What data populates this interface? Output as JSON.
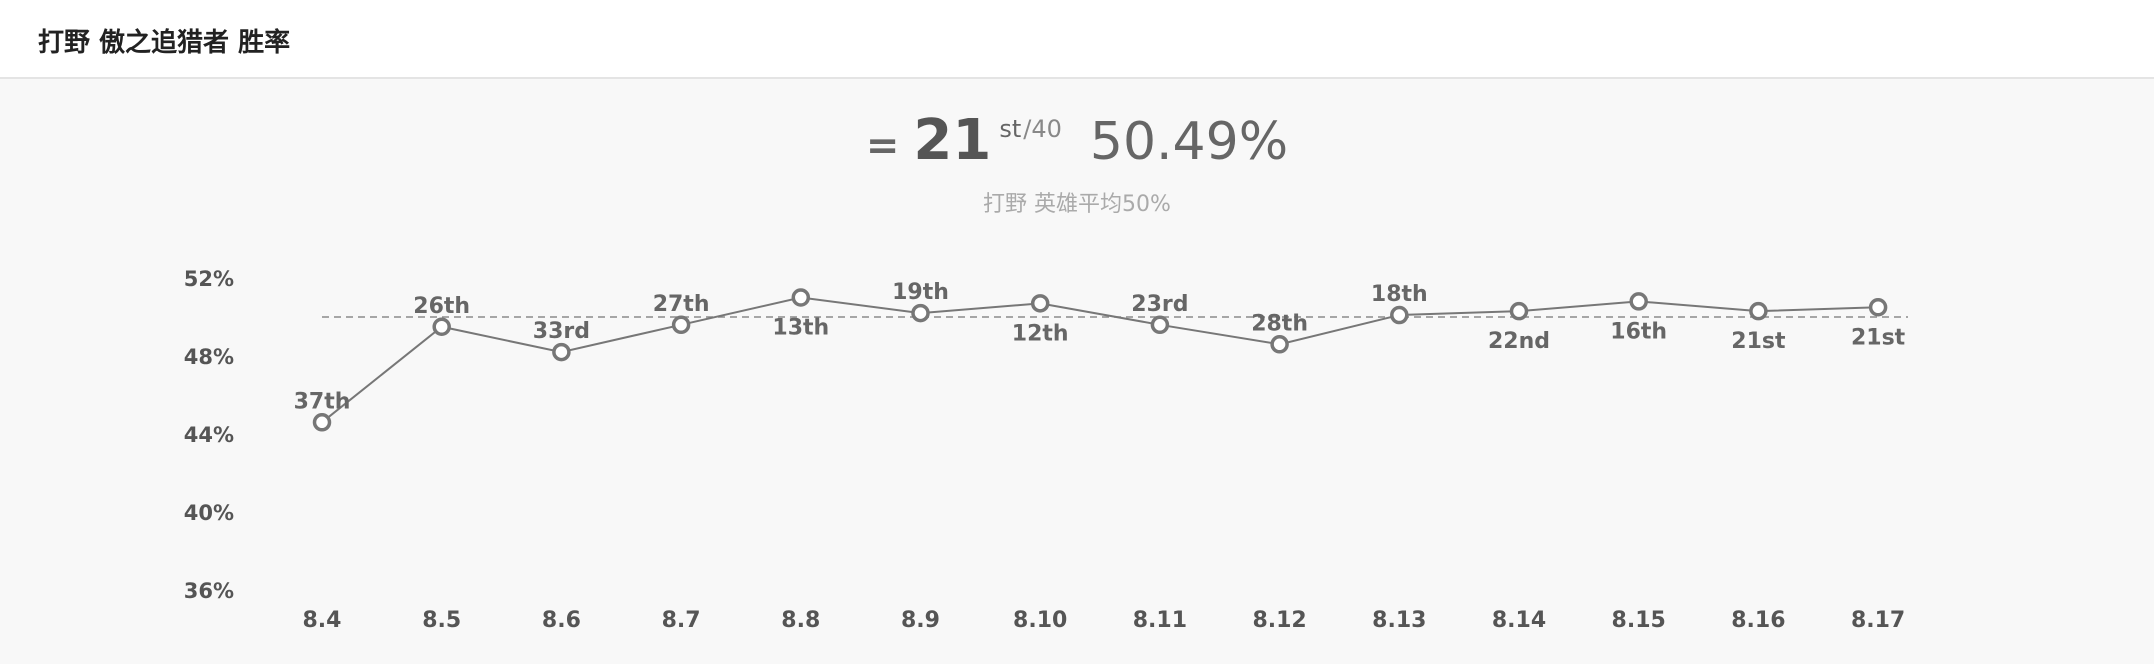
{
  "header": {
    "title": "打野 傲之追猎者 胜率"
  },
  "summary": {
    "trend_symbol": "=",
    "rank": "21",
    "rank_suffix": "st",
    "rank_total": "/40",
    "win_rate": "50.49%",
    "subtitle": "打野 英雄平均50%"
  },
  "colors": {
    "line": "#777777",
    "point_fill": "#ffffff",
    "point_stroke": "#777777",
    "reference_line": "#8a8a8a",
    "tick_text": "#555555",
    "rank_label": "#666666"
  },
  "chart_data": {
    "type": "line",
    "categories": [
      "8.4",
      "8.5",
      "8.6",
      "8.7",
      "8.8",
      "8.9",
      "8.10",
      "8.11",
      "8.12",
      "8.13",
      "8.14",
      "8.15",
      "8.16",
      "8.17"
    ],
    "series": [
      {
        "values": [
          44.6,
          49.5,
          48.2,
          49.6,
          51.0,
          50.2,
          50.7,
          49.6,
          48.6,
          50.1,
          50.3,
          50.8,
          50.3,
          50.5
        ],
        "rank_labels": [
          "37th",
          "26th",
          "33rd",
          "27th",
          "13th",
          "19th",
          "12th",
          "23rd",
          "28th",
          "18th",
          "22nd",
          "16th",
          "21st",
          "21st"
        ],
        "label_positions": [
          "above",
          "above",
          "above",
          "above",
          "below",
          "above",
          "below",
          "above",
          "above",
          "above",
          "below",
          "below",
          "below",
          "below"
        ]
      }
    ],
    "reference_line": {
      "value": 50,
      "style": "dashed"
    },
    "yticks": [
      "52%",
      "48%",
      "44%",
      "40%",
      "36%"
    ],
    "ytick_values": [
      52,
      48,
      44,
      40,
      36
    ],
    "ylim": [
      36,
      52
    ],
    "grid": false,
    "legend": "none"
  }
}
